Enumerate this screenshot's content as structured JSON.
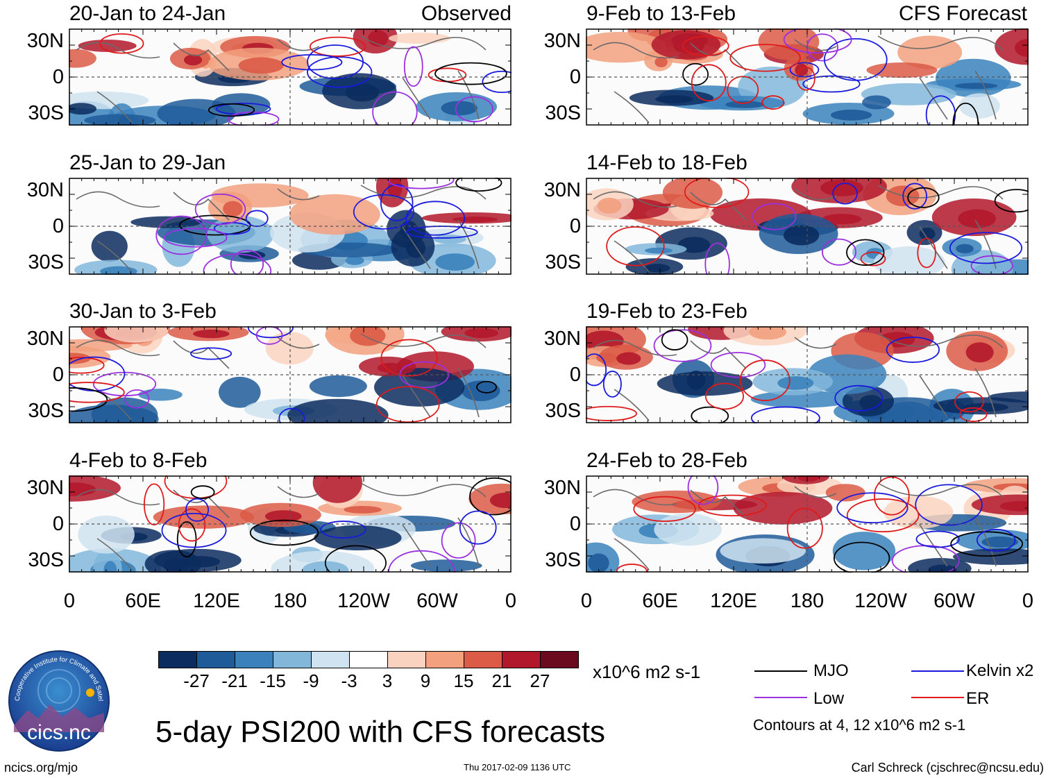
{
  "observed_label": "Observed",
  "forecast_label": "CFS Forecast",
  "panels_left": [
    {
      "title": "20-Jan to 24-Jan"
    },
    {
      "title": "25-Jan to 29-Jan"
    },
    {
      "title": "30-Jan to 3-Feb"
    },
    {
      "title": "4-Feb to 8-Feb"
    }
  ],
  "panels_right": [
    {
      "title": "9-Feb to 13-Feb"
    },
    {
      "title": "14-Feb to 18-Feb"
    },
    {
      "title": "19-Feb to 23-Feb"
    },
    {
      "title": "24-Feb to 28-Feb"
    }
  ],
  "lat_labels": [
    "30N",
    "0",
    "30S"
  ],
  "lon_labels": [
    "0",
    "60E",
    "120E",
    "180",
    "120W",
    "60W",
    "0"
  ],
  "colorbar": {
    "ticks": [
      "-27",
      "-21",
      "-15",
      "-9",
      "-3",
      "3",
      "9",
      "15",
      "21",
      "27"
    ],
    "colors": [
      "#0b2c5e",
      "#1f5a99",
      "#3b82bd",
      "#83b7da",
      "#cfe3f0",
      "#ffffff",
      "#fad3c0",
      "#f2a07e",
      "#db5b47",
      "#b2182b",
      "#6b0a1f"
    ],
    "units": "x10^6 m2 s-1"
  },
  "legend": {
    "mjo": {
      "label": "MJO",
      "color": "#000000"
    },
    "kelvin": {
      "label": "Kelvin x2",
      "color": "#1a1add"
    },
    "low": {
      "label": "Low",
      "color": "#9b30e0"
    },
    "er": {
      "label": "ER",
      "color": "#e01a1a"
    },
    "note": "Contours at 4, 12 x10^6 m2 s-1"
  },
  "main_title": "5-day PSI200 with CFS forecasts",
  "footer_left": "ncics.org/mjo",
  "footer_center": "Thu 2017-02-09 1136 UTC",
  "footer_right": "Carl Schreck (cjschrec@ncsu.edu)",
  "logo": {
    "text": "cics.nc",
    "ring_text": "Cooperative Institute for Climate and Satellites"
  }
}
